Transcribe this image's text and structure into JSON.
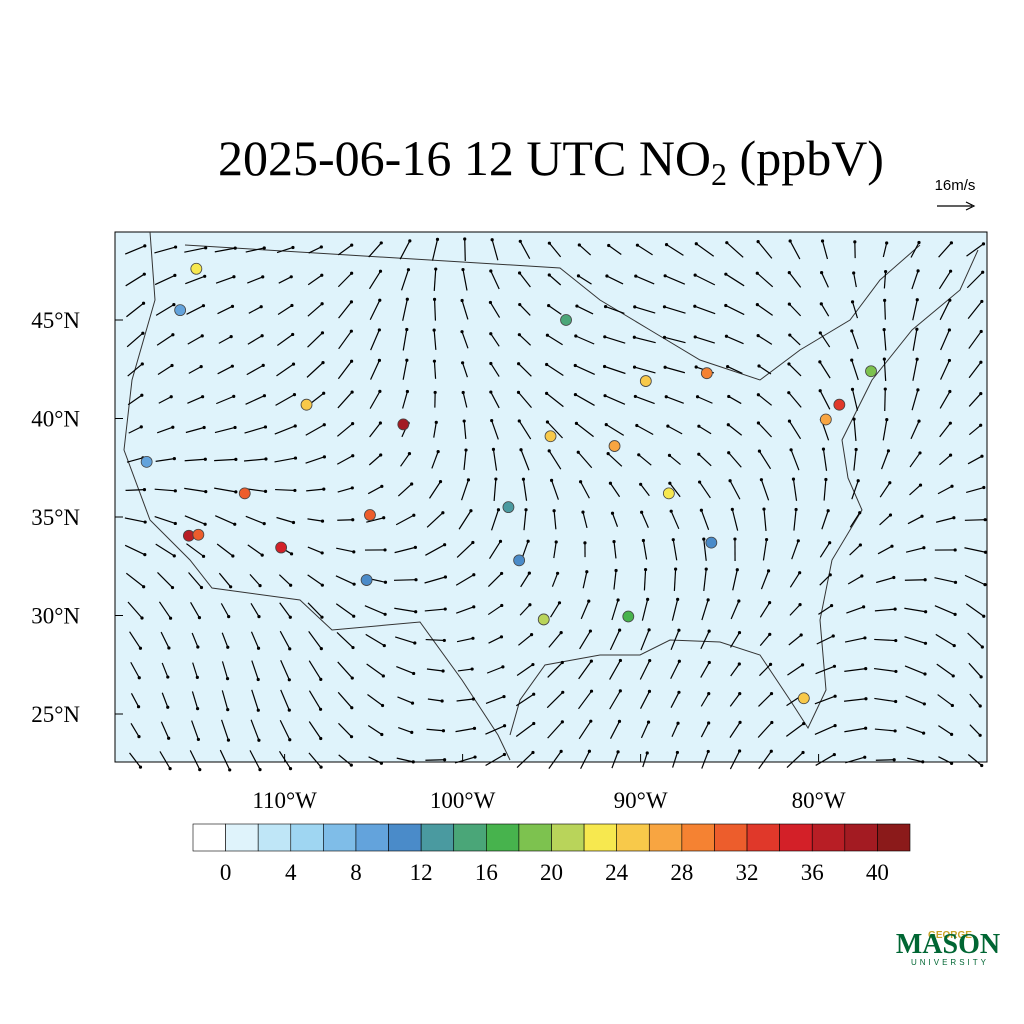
{
  "title": {
    "text": "2025-06-16 12 UTC NO",
    "subscript": "2",
    "suffix": " (ppbV)"
  },
  "wind_reference": "16m/s",
  "lat_labels": [
    {
      "value": 45,
      "label": "45°N"
    },
    {
      "value": 40,
      "label": "40°N"
    },
    {
      "value": 35,
      "label": "35°N"
    },
    {
      "value": 30,
      "label": "30°N"
    },
    {
      "value": 25,
      "label": "25°N"
    }
  ],
  "lon_labels": [
    {
      "value": -110,
      "label": "110°W"
    },
    {
      "value": -100,
      "label": "100°W"
    },
    {
      "value": -90,
      "label": "90°W"
    },
    {
      "value": -80,
      "label": "80°W"
    }
  ],
  "colorbar": {
    "ticks": [
      0,
      4,
      8,
      12,
      16,
      20,
      24,
      28,
      32,
      36,
      40
    ],
    "colors": [
      "#ffffff",
      "#dff3fb",
      "#bfe6f7",
      "#9fd6f2",
      "#7fbde8",
      "#63a3dc",
      "#4a8bc9",
      "#4a9aa0",
      "#4aa678",
      "#47b34d",
      "#7dc24f",
      "#b9d45a",
      "#f7e84f",
      "#f8c94a",
      "#f8a541",
      "#f58232",
      "#ed5d2c",
      "#e0382a",
      "#d32028",
      "#b81e25",
      "#a31b22",
      "#8b1a1a"
    ]
  },
  "stations": [
    {
      "lon": -122.3,
      "lat": 47.6,
      "value": 22
    },
    {
      "lon": -122.7,
      "lat": 45.5,
      "value": 8
    },
    {
      "lon": -122.2,
      "lat": 37.8,
      "value": 8
    },
    {
      "lon": -118.2,
      "lat": 34.05,
      "value": 36
    },
    {
      "lon": -117.6,
      "lat": 34.1,
      "value": 30
    },
    {
      "lon": -112.1,
      "lat": 33.45,
      "value": 34
    },
    {
      "lon": -115.1,
      "lat": 36.2,
      "value": 30
    },
    {
      "lon": -111.9,
      "lat": 40.7,
      "value": 24
    },
    {
      "lon": -104.9,
      "lat": 39.7,
      "value": 38
    },
    {
      "lon": -106.6,
      "lat": 35.1,
      "value": 30
    },
    {
      "lon": -106.4,
      "lat": 31.8,
      "value": 10
    },
    {
      "lon": -96.8,
      "lat": 32.8,
      "value": 10
    },
    {
      "lon": -95.3,
      "lat": 29.8,
      "value": 20
    },
    {
      "lon": -87.6,
      "lat": 41.9,
      "value": 24
    },
    {
      "lon": -83.1,
      "lat": 42.3,
      "value": 28
    },
    {
      "lon": -74.0,
      "lat": 40.7,
      "value": 32
    },
    {
      "lon": -75.2,
      "lat": 39.95,
      "value": 26
    },
    {
      "lon": -80.2,
      "lat": 25.8,
      "value": 24
    },
    {
      "lon": -84.4,
      "lat": 33.7,
      "value": 10
    },
    {
      "lon": -90.2,
      "lat": 38.6,
      "value": 26
    },
    {
      "lon": -93.2,
      "lat": 45.0,
      "value": 14
    },
    {
      "lon": -90.1,
      "lat": 29.95,
      "value": 16
    },
    {
      "lon": -71.1,
      "lat": 42.4,
      "value": 18
    },
    {
      "lon": -97.5,
      "lat": 35.5,
      "value": 12
    },
    {
      "lon": -94.6,
      "lat": 39.1,
      "value": 24
    },
    {
      "lon": -86.8,
      "lat": 36.2,
      "value": 22
    }
  ],
  "logo": {
    "top": "GEORGE",
    "main": "MASON",
    "bottom": "UNIVERSITY"
  }
}
